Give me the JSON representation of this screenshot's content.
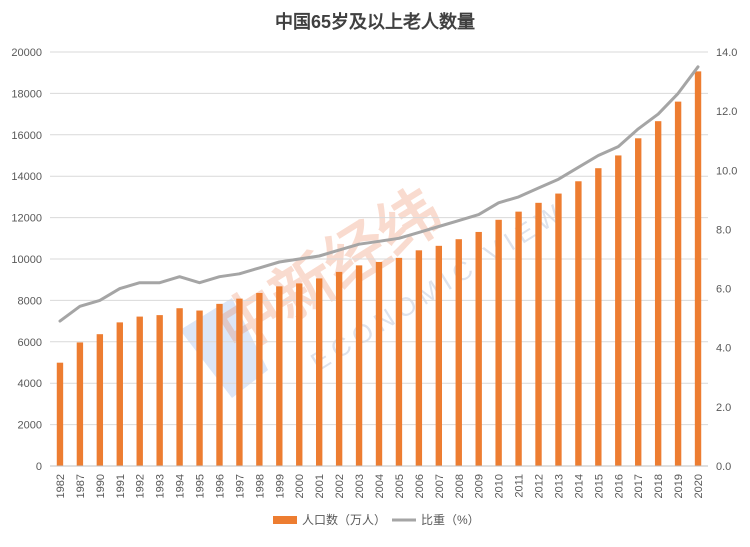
{
  "chart_data": {
    "type": "bar+line",
    "title": "中国65岁及以上老人数量",
    "categories": [
      "1982",
      "1987",
      "1990",
      "1991",
      "1992",
      "1993",
      "1994",
      "1995",
      "1996",
      "1997",
      "1998",
      "1999",
      "2000",
      "2001",
      "2002",
      "2003",
      "2004",
      "2005",
      "2006",
      "2007",
      "2008",
      "2009",
      "2010",
      "2011",
      "2012",
      "2013",
      "2014",
      "2015",
      "2016",
      "2017",
      "2018",
      "2019",
      "2020"
    ],
    "series": [
      {
        "name": "人口数（万人）",
        "type": "bar",
        "axis": "left",
        "color": "#ed7d31",
        "values": [
          4991,
          5968,
          6368,
          6938,
          7218,
          7289,
          7622,
          7510,
          7833,
          8085,
          8359,
          8679,
          8821,
          9062,
          9377,
          9692,
          9857,
          10055,
          10419,
          10636,
          10956,
          11307,
          11894,
          12288,
          12714,
          13161,
          13755,
          14386,
          15003,
          15831,
          16658,
          17603,
          19064
        ]
      },
      {
        "name": "比重（%）",
        "type": "line",
        "axis": "right",
        "color": "#a5a5a5",
        "values": [
          4.9,
          5.4,
          5.6,
          6.0,
          6.2,
          6.2,
          6.4,
          6.2,
          6.4,
          6.5,
          6.7,
          6.9,
          7.0,
          7.1,
          7.3,
          7.5,
          7.6,
          7.7,
          7.9,
          8.1,
          8.3,
          8.5,
          8.9,
          9.1,
          9.4,
          9.7,
          10.1,
          10.5,
          10.8,
          11.4,
          11.9,
          12.6,
          13.5
        ]
      }
    ],
    "ylim_left": [
      0,
      20000
    ],
    "yticks_left": [
      "0",
      "2000",
      "4000",
      "6000",
      "8000",
      "10000",
      "12000",
      "14000",
      "16000",
      "18000",
      "20000"
    ],
    "ylim_right": [
      0,
      14
    ],
    "yticks_right": [
      "0.0",
      "2.0",
      "4.0",
      "6.0",
      "8.0",
      "10.0",
      "12.0",
      "14.0"
    ],
    "grid": true,
    "legend_position": "bottom"
  },
  "watermark": {
    "text": "中新经纬",
    "subtext": "ECONOMIC VIEW"
  }
}
